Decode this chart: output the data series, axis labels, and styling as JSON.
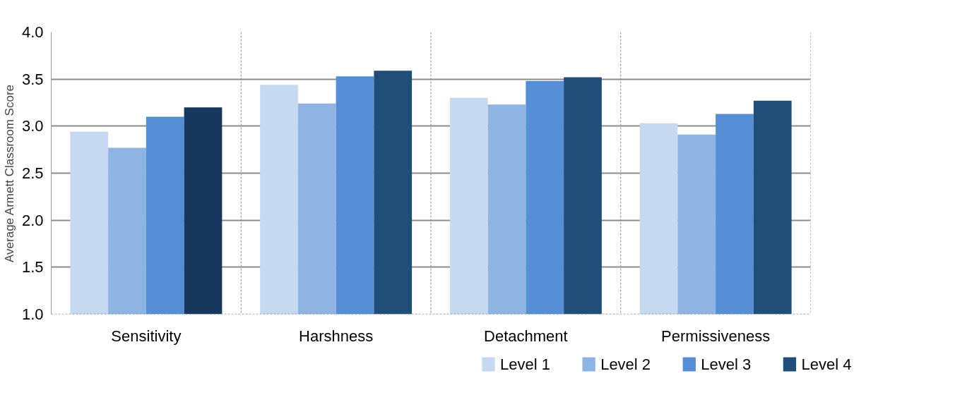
{
  "chart_data": {
    "type": "bar",
    "ylabel": "Average Armett Classroom Score",
    "categories": [
      "Sensitivity",
      "Harshness",
      "Detachment",
      "Permissiveness"
    ],
    "series": [
      {
        "name": "Level 1",
        "color": "#c6d9f1",
        "values": [
          2.94,
          3.44,
          3.3,
          3.03
        ]
      },
      {
        "name": "Level 2",
        "color": "#8eb4e3",
        "values": [
          2.77,
          3.24,
          3.23,
          2.91
        ]
      },
      {
        "name": "Level 3",
        "color": "#558ed5",
        "values": [
          3.1,
          3.53,
          3.48,
          3.13
        ]
      },
      {
        "name": "Level 4",
        "color": "#1f4e79",
        "colors": [
          "#17375e",
          "#1f4e79",
          "#1f4e79",
          "#1f4e79"
        ],
        "values": [
          3.2,
          3.59,
          3.52,
          3.27
        ]
      }
    ],
    "ylim": [
      1.0,
      4.0
    ],
    "yticks": [
      {
        "value": 1.0,
        "label": "1.0"
      },
      {
        "value": 1.5,
        "label": "1.5"
      },
      {
        "value": 2.0,
        "label": "2.0"
      },
      {
        "value": 2.5,
        "label": "2.5"
      },
      {
        "value": 3.0,
        "label": "3.0"
      },
      {
        "value": 3.5,
        "label": "3.5"
      },
      {
        "value": 4.0,
        "label": "4.0"
      }
    ],
    "grid": "y",
    "legend": "bottom right"
  }
}
